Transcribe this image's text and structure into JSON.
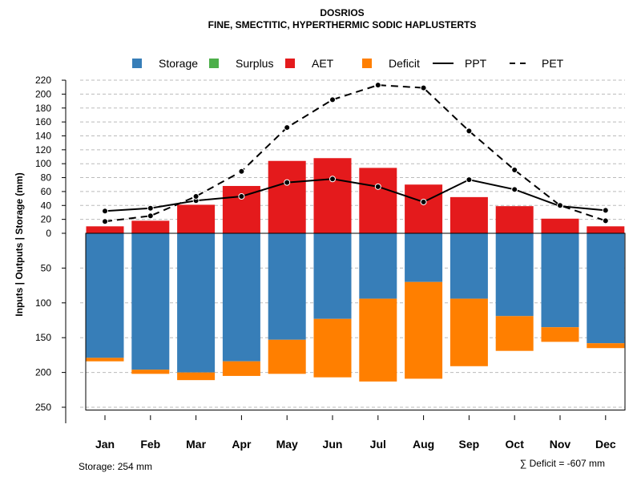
{
  "chart_data": {
    "type": "bar",
    "title": "DOSRIOS",
    "subtitle": "FINE, SMECTITIC, HYPERTHERMIC SODIC HAPLUSTERTS",
    "ylabel": "Inputs | Outputs | Storage    (mm)",
    "categories": [
      "Jan",
      "Feb",
      "Mar",
      "Apr",
      "May",
      "Jun",
      "Jul",
      "Aug",
      "Sep",
      "Oct",
      "Nov",
      "Dec"
    ],
    "yticks_positive": [
      0,
      20,
      40,
      60,
      80,
      100,
      120,
      140,
      160,
      180,
      200,
      220
    ],
    "yticks_negative": [
      50,
      100,
      150,
      200,
      250
    ],
    "ylim": [
      -254,
      220
    ],
    "series": [
      {
        "name": "Storage",
        "color": "#377EB8",
        "values": [
          179,
          196,
          200,
          184,
          153,
          123,
          94,
          70,
          94,
          119,
          135,
          158
        ]
      },
      {
        "name": "Surplus",
        "color": "#4DAF4A",
        "values": [
          0,
          0,
          0,
          0,
          0,
          0,
          0,
          0,
          0,
          0,
          0,
          0
        ]
      },
      {
        "name": "AET",
        "color": "#E41A1C",
        "values": [
          10,
          18,
          41,
          68,
          104,
          108,
          94,
          70,
          52,
          39,
          21,
          10
        ]
      },
      {
        "name": "Deficit",
        "color": "#FF7F00",
        "values": [
          5,
          6,
          11,
          21,
          49,
          84,
          119,
          139,
          97,
          50,
          21,
          7
        ]
      },
      {
        "name": "PPT",
        "color": "#000000",
        "values": [
          32,
          36,
          47,
          53,
          73,
          78,
          67,
          45,
          77,
          63,
          39,
          33
        ]
      },
      {
        "name": "PET",
        "color": "#000000",
        "values": [
          17,
          25,
          53,
          89,
          152,
          192,
          213,
          209,
          147,
          91,
          40,
          18
        ]
      }
    ],
    "legend_position": "top",
    "storage_capacity": 254,
    "annotations": {
      "storage": "Storage: 254 mm",
      "deficit": "∑ Deficit = -607 mm"
    }
  }
}
